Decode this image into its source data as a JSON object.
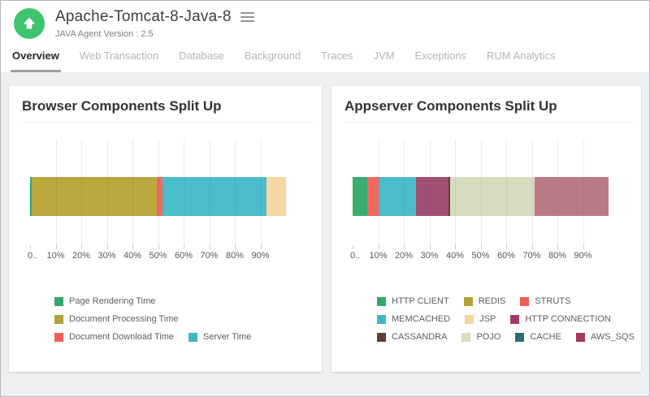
{
  "header": {
    "title": "Apache-Tomcat-8-Java-8",
    "subtitle": "JAVA Agent Version : 2.5",
    "app_icon": {
      "name": "upload-arrow-icon",
      "background_color": "#3ec46f",
      "glyph_color": "#ffffff"
    },
    "menu_icon": "hamburger-icon"
  },
  "tabs": {
    "active": "Overview",
    "items": [
      "Overview",
      "Web Transaction",
      "Database",
      "Background",
      "Traces",
      "JVM",
      "Exceptions",
      "RUM Analytics"
    ]
  },
  "chart_data": [
    {
      "type": "bar",
      "orientation": "horizontal",
      "stacked": true,
      "title": "Browser Components Split Up",
      "xlabel": "",
      "ylabel": "",
      "xlim": [
        0,
        100
      ],
      "x_ticks": [
        "0..",
        "10%",
        "20%",
        "30%",
        "40%",
        "50%",
        "60%",
        "70%",
        "80%",
        "90%"
      ],
      "grid": true,
      "legend_position": "bottom-left",
      "segments": [
        {
          "label": "Page Rendering Time",
          "value": 0.6,
          "color": "#2fa96a"
        },
        {
          "label": "Document Processing Time",
          "value": 48.9,
          "color": "#b9a83e"
        },
        {
          "label": "Document Download Time",
          "value": 2.2,
          "color": "#f26860"
        },
        {
          "label": "Server Time",
          "value": 40.6,
          "color": "#4bbcca"
        },
        {
          "label": "",
          "value": 7.7,
          "color": "#f6d7a1"
        }
      ],
      "legend_rows": [
        [
          {
            "label": "Page Rendering Time",
            "color": "#2fa96a"
          }
        ],
        [
          {
            "label": "Document Processing Time",
            "color": "#b2a136"
          }
        ],
        [
          {
            "label": "Document Download Time",
            "color": "#f15f57"
          },
          {
            "label": "Server Time",
            "color": "#41b8c4"
          }
        ]
      ]
    },
    {
      "type": "bar",
      "orientation": "horizontal",
      "stacked": true,
      "title": "Appserver Components Split Up",
      "xlabel": "",
      "ylabel": "",
      "xlim": [
        0,
        100
      ],
      "x_ticks": [
        "0..",
        "10%",
        "20%",
        "30%",
        "40%",
        "50%",
        "60%",
        "70%",
        "80%",
        "90%"
      ],
      "grid": true,
      "legend_position": "bottom-left",
      "segments": [
        {
          "label": "HTTP CLIENT",
          "value": 5.6,
          "color": "#3aad72"
        },
        {
          "label": "STRUTS",
          "value": 4.5,
          "color": "#f26860"
        },
        {
          "label": "MEMCACHED",
          "value": 14.6,
          "color": "#4bbcca"
        },
        {
          "label": "HTTP CONNECTION",
          "value": 12.9,
          "color": "#a24f74"
        },
        {
          "label": "CASSANDRA",
          "value": 0.6,
          "color": "#5d4037"
        },
        {
          "label": "POJO",
          "value": 32.8,
          "color": "#d8dcc0"
        },
        {
          "label": "AWS_SQS",
          "value": 29.0,
          "color": "#b97c87"
        }
      ],
      "legend_rows": [
        [
          {
            "label": "HTTP CLIENT",
            "color": "#2fa96a"
          },
          {
            "label": "REDIS",
            "color": "#b2a136"
          },
          {
            "label": "STRUTS",
            "color": "#f15f57"
          }
        ],
        [
          {
            "label": "MEMCACHED",
            "color": "#41b8c4"
          },
          {
            "label": "JSP",
            "color": "#f6d49e"
          },
          {
            "label": "HTTP CONNECTION",
            "color": "#a13a68"
          }
        ],
        [
          {
            "label": "CASSANDRA",
            "color": "#5d4037"
          },
          {
            "label": "POJO",
            "color": "#d8dcc0"
          },
          {
            "label": "CACHE",
            "color": "#2d6b76"
          },
          {
            "label": "AWS_SQS",
            "color": "#a23a62"
          }
        ]
      ]
    }
  ]
}
